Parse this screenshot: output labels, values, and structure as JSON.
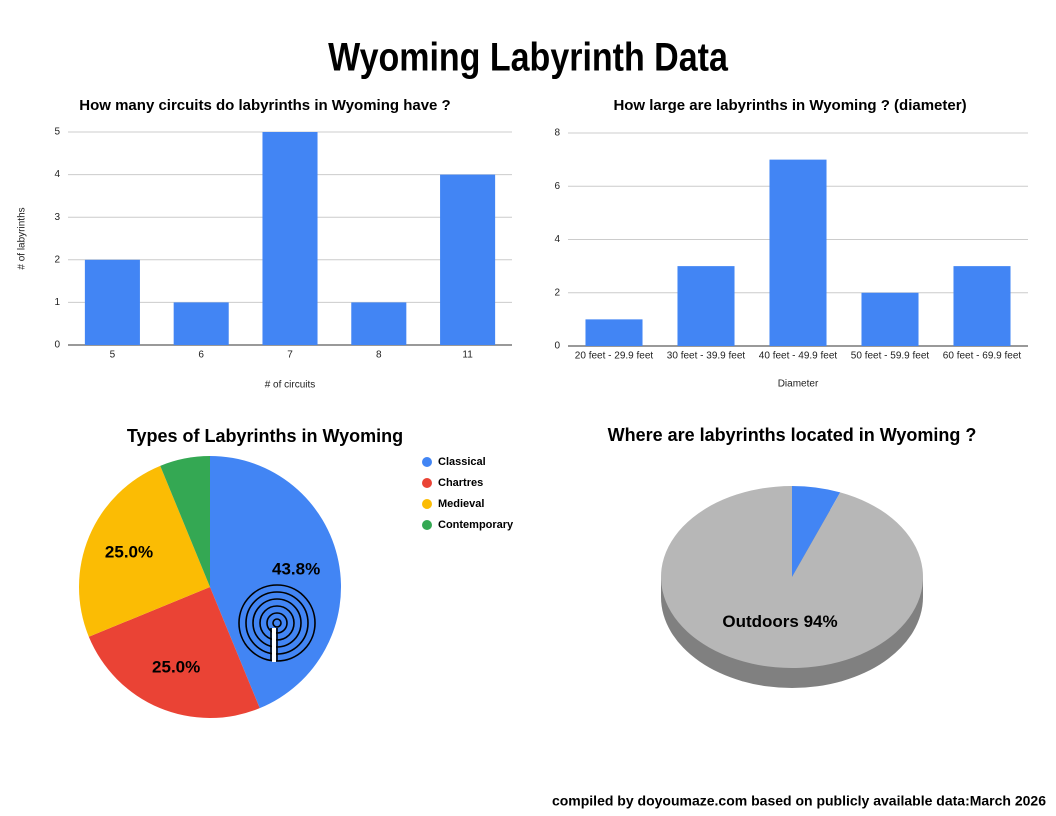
{
  "title": "Wyoming Labyrinth Data",
  "footer": "compiled by doyoumaze.com based on publicly available data:March 2026",
  "chart_data": [
    {
      "type": "bar",
      "title": "How many circuits do labyrinths in Wyoming have ?",
      "categories": [
        "5",
        "6",
        "7",
        "8",
        "11"
      ],
      "values": [
        2,
        1,
        5,
        1,
        4
      ],
      "color": "#4285f4",
      "xlabel": "# of circuits",
      "ylabel": "# of labyrinths",
      "ylim": [
        0,
        5
      ],
      "yticks": [
        0,
        1,
        2,
        3,
        4,
        5
      ],
      "grid": true
    },
    {
      "type": "bar",
      "title": "How large are labyrinths in Wyoming ? (diameter)",
      "categories": [
        "20 feet - 29.9 feet",
        "30 feet - 39.9 feet",
        "40 feet - 49.9 feet",
        "50 feet - 59.9 feet",
        "60 feet - 69.9 feet"
      ],
      "values": [
        1,
        3,
        7,
        2,
        3
      ],
      "color": "#4285f4",
      "xlabel": "Diameter",
      "ylim": [
        0,
        8
      ],
      "yticks": [
        0,
        2,
        4,
        6,
        8
      ],
      "grid": true
    },
    {
      "type": "pie",
      "title": "Types of Labyrinths in Wyoming",
      "categories": [
        "Classical",
        "Chartres",
        "Medieval",
        "Contemporary"
      ],
      "values": [
        43.8,
        25,
        25,
        6.2
      ],
      "value_labels": [
        "43.8%",
        "25.0%",
        "25.0%",
        null
      ],
      "colors": [
        "#4285f4",
        "#ea4335",
        "#fbbc04",
        "#34a853"
      ],
      "legend": "right"
    },
    {
      "type": "pie3d",
      "title": "Where are labyrinths located in Wyoming ?",
      "categories": [
        null,
        "Outdoors"
      ],
      "values": [
        6,
        94
      ],
      "value_labels": [
        null,
        "94%"
      ],
      "colors": [
        "#4285f4",
        "#b7b7b7"
      ]
    }
  ]
}
